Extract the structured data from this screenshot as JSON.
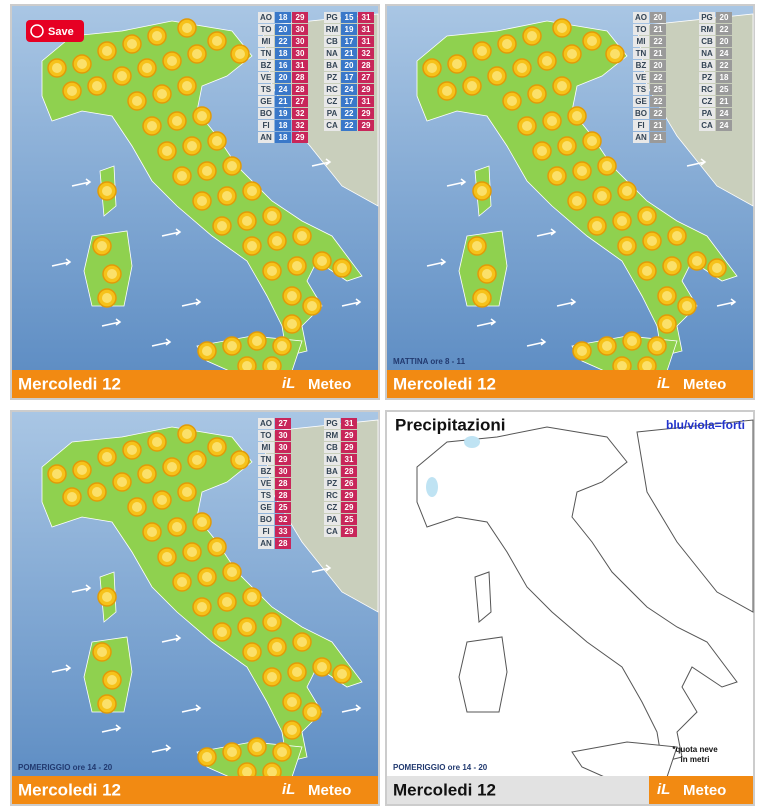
{
  "save_button": "Save",
  "panels": [
    {
      "date": "Mercoledi 12",
      "brand_il": "iL",
      "brand": "Meteo",
      "temps": {
        "left": [
          {
            "city": "AO",
            "min": 18,
            "max": 29
          },
          {
            "city": "TO",
            "min": 20,
            "max": 30
          },
          {
            "city": "MI",
            "min": 22,
            "max": 30
          },
          {
            "city": "TN",
            "min": 18,
            "max": 30
          },
          {
            "city": "BZ",
            "min": 16,
            "max": 31
          },
          {
            "city": "VE",
            "min": 20,
            "max": 28
          },
          {
            "city": "TS",
            "min": 24,
            "max": 28
          },
          {
            "city": "GE",
            "min": 21,
            "max": 27
          },
          {
            "city": "BO",
            "min": 19,
            "max": 32
          },
          {
            "city": "FI",
            "min": 18,
            "max": 32
          },
          {
            "city": "AN",
            "min": 18,
            "max": 29
          }
        ],
        "right": [
          {
            "city": "PG",
            "min": 15,
            "max": 31
          },
          {
            "city": "RM",
            "min": 19,
            "max": 31
          },
          {
            "city": "CB",
            "min": 17,
            "max": 31
          },
          {
            "city": "NA",
            "min": 21,
            "max": 32
          },
          {
            "city": "BA",
            "min": 20,
            "max": 28
          },
          {
            "city": "PZ",
            "min": 17,
            "max": 27
          },
          {
            "city": "RC",
            "min": 24,
            "max": 29
          },
          {
            "city": "CZ",
            "min": 17,
            "max": 31
          },
          {
            "city": "PA",
            "min": 22,
            "max": 29
          },
          {
            "city": "CA",
            "min": 22,
            "max": 29
          }
        ]
      }
    },
    {
      "date": "Mercoledi 12",
      "brand_il": "iL",
      "brand": "Meteo",
      "period": "MATTINA ore 8 - 11",
      "temps": {
        "left": [
          {
            "city": "AO",
            "value": 20
          },
          {
            "city": "TO",
            "value": 21
          },
          {
            "city": "MI",
            "value": 22
          },
          {
            "city": "TN",
            "value": 21
          },
          {
            "city": "BZ",
            "value": 20
          },
          {
            "city": "VE",
            "value": 22
          },
          {
            "city": "TS",
            "value": 25
          },
          {
            "city": "GE",
            "value": 22
          },
          {
            "city": "BO",
            "value": 22
          },
          {
            "city": "FI",
            "value": 21
          },
          {
            "city": "AN",
            "value": 21
          }
        ],
        "right": [
          {
            "city": "PG",
            "value": 20
          },
          {
            "city": "RM",
            "value": 22
          },
          {
            "city": "CB",
            "value": 20
          },
          {
            "city": "NA",
            "value": 24
          },
          {
            "city": "BA",
            "value": 22
          },
          {
            "city": "PZ",
            "value": 18
          },
          {
            "city": "RC",
            "value": 25
          },
          {
            "city": "CZ",
            "value": 21
          },
          {
            "city": "PA",
            "value": 24
          },
          {
            "city": "CA",
            "value": 24
          }
        ]
      }
    },
    {
      "date": "Mercoledi 12",
      "brand_il": "iL",
      "brand": "Meteo",
      "period": "POMERIGGIO ore 14 - 20",
      "temps": {
        "left": [
          {
            "city": "AO",
            "value": 27
          },
          {
            "city": "TO",
            "value": 30
          },
          {
            "city": "MI",
            "value": 30
          },
          {
            "city": "TN",
            "value": 29
          },
          {
            "city": "BZ",
            "value": 30
          },
          {
            "city": "VE",
            "value": 28
          },
          {
            "city": "TS",
            "value": 28
          },
          {
            "city": "GE",
            "value": 25
          },
          {
            "city": "BO",
            "value": 32
          },
          {
            "city": "FI",
            "value": 33
          },
          {
            "city": "AN",
            "value": 28
          }
        ],
        "right": [
          {
            "city": "PG",
            "value": 31
          },
          {
            "city": "RM",
            "value": 29
          },
          {
            "city": "CB",
            "value": 29
          },
          {
            "city": "NA",
            "value": 31
          },
          {
            "city": "BA",
            "value": 28
          },
          {
            "city": "PZ",
            "value": 26
          },
          {
            "city": "RC",
            "value": 29
          },
          {
            "city": "CZ",
            "value": 29
          },
          {
            "city": "PA",
            "value": 25
          },
          {
            "city": "CA",
            "value": 29
          }
        ]
      }
    },
    {
      "date": "Mercoledi 12",
      "brand_il": "iL",
      "brand": "Meteo",
      "period": "POMERIGGIO ore 14 - 20",
      "title": "Precipitazioni",
      "legend": "blu/viola=forti",
      "note": [
        "*quota neve",
        "in metri"
      ]
    }
  ]
}
